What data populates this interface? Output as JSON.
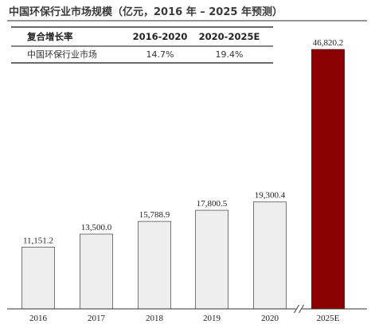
{
  "title": "中国环保行业市场规模（亿元，2016 年 – 2025 年预测）",
  "cagr_table": {
    "headers": [
      "复合增长率",
      "2016-2020",
      "2020-2025E"
    ],
    "rows": [
      {
        "label": "中国环保行业市场",
        "values": [
          "14.7%",
          "19.4%"
        ]
      }
    ]
  },
  "chart_data": {
    "type": "bar",
    "title": "中国环保行业市场规模（亿元，2016 年 – 2025 年预测）",
    "categories": [
      "2016",
      "2017",
      "2018",
      "2019",
      "2020",
      "2025E"
    ],
    "values": [
      11151.2,
      13500.0,
      15788.9,
      17800.5,
      19300.4,
      46820.2
    ],
    "value_labels": [
      "11,151.2",
      "13,500.0",
      "15,788.9",
      "17,800.5",
      "19,300.4",
      "46,820.2"
    ],
    "ylim": [
      0,
      49000
    ],
    "xlabel": "",
    "ylabel": "",
    "axis_break_between": [
      "2020",
      "2025E"
    ],
    "grid": false,
    "colors": {
      "actual_fill": "#eeeeef",
      "actual_stroke": "#555555",
      "forecast_fill": "#8b0000",
      "forecast_stroke": "#4a0000",
      "axis": "#333333"
    }
  }
}
